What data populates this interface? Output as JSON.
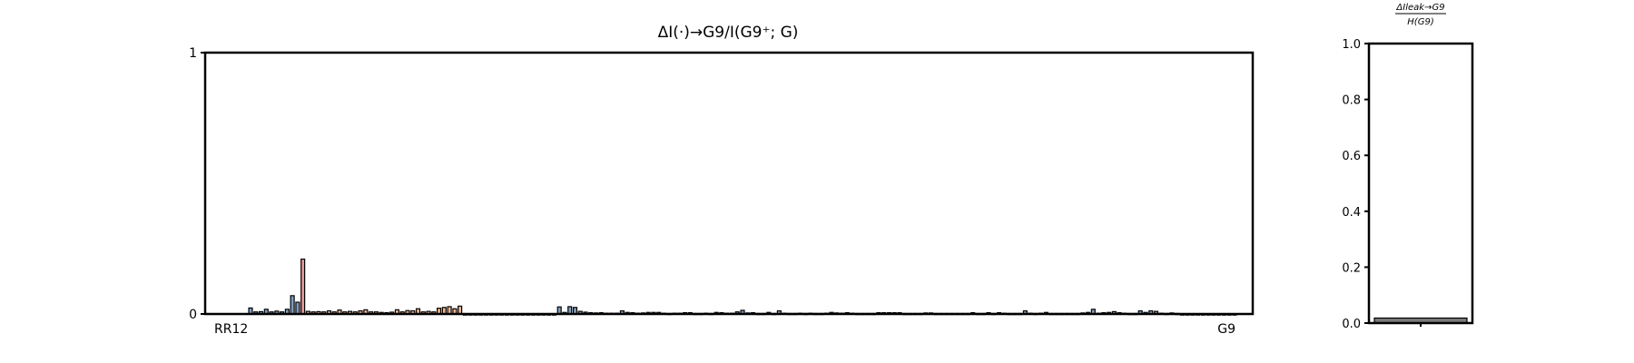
{
  "chart_data": [
    {
      "type": "bar",
      "title": "ΔI(·)→G9/I(G9⁺; G)",
      "ylim": [
        0,
        1
      ],
      "y_ticks": [
        "0",
        "1"
      ],
      "x_tick_labels_start": "RR12",
      "x_tick_labels_end": "G9",
      "num_bars": 189,
      "values": [
        0.023,
        0.008,
        0.009,
        0.018,
        0.008,
        0.011,
        0.008,
        0.018,
        0.07,
        0.045,
        0.21,
        0.01,
        0.008,
        0.009,
        0.008,
        0.012,
        0.008,
        0.015,
        0.008,
        0.01,
        0.008,
        0.012,
        0.016,
        0.008,
        0.008,
        0.006,
        0.005,
        0.007,
        0.016,
        0.008,
        0.013,
        0.012,
        0.02,
        0.008,
        0.01,
        0.008,
        0.022,
        0.025,
        0.028,
        0.02,
        0.03,
        0,
        0,
        0,
        0,
        0,
        0,
        0,
        0,
        0,
        0,
        0,
        0,
        0,
        0,
        0,
        0,
        0,
        0,
        0.027,
        0.006,
        0.028,
        0.025,
        0.01,
        0.007,
        0.005,
        0.004,
        0.005,
        0.003,
        0.003,
        0.003,
        0.012,
        0.006,
        0.005,
        0.003,
        0.004,
        0.006,
        0.006,
        0.006,
        0.003,
        0.002,
        0.003,
        0.003,
        0.005,
        0.005,
        0.002,
        0.002,
        0.003,
        0.002,
        0.006,
        0.005,
        0.003,
        0.003,
        0.008,
        0.014,
        0.004,
        0.005,
        0.002,
        0.002,
        0.006,
        0.002,
        0.012,
        0.003,
        0.002,
        0.002,
        0.003,
        0.002,
        0.003,
        0.002,
        0.002,
        0.003,
        0.006,
        0.004,
        0.003,
        0.005,
        0.003,
        0.002,
        0.002,
        0.002,
        0.002,
        0.005,
        0.005,
        0.005,
        0.005,
        0.005,
        0.002,
        0.002,
        0.002,
        0.002,
        0.004,
        0.004,
        0.002,
        0.002,
        0.002,
        0.002,
        0.002,
        0.002,
        0.002,
        0.005,
        0.002,
        0.002,
        0.005,
        0.002,
        0.005,
        0.003,
        0.002,
        0.002,
        0.002,
        0.012,
        0.003,
        0.002,
        0.003,
        0.006,
        0.002,
        0.002,
        0.002,
        0.002,
        0.002,
        0.002,
        0.004,
        0.006,
        0.018,
        0.003,
        0.005,
        0.006,
        0.009,
        0.005,
        0.003,
        0.002,
        0.002,
        0.012,
        0.006,
        0.012,
        0.01,
        0.003,
        0.002,
        0.004,
        0.002,
        0,
        0,
        0,
        0,
        0,
        0,
        0,
        0,
        0,
        0,
        0
      ],
      "colors": {
        "blue": "#7f9fc0",
        "red": "#e39a9a",
        "orange": "#efb58f",
        "edge": "#000000"
      }
    },
    {
      "type": "bar",
      "title": "ΔIleak→G9/H(G9)",
      "title_numerator": "ΔIleak→G9",
      "title_denominator": "H(G9)",
      "ylim": [
        0,
        1.0
      ],
      "y_ticks": [
        "0.0",
        "0.2",
        "0.4",
        "0.6",
        "0.8",
        "1.0"
      ],
      "values": [
        0.018
      ],
      "colors": {
        "bar": "#7a7a7a",
        "edge": "#000000"
      }
    }
  ]
}
